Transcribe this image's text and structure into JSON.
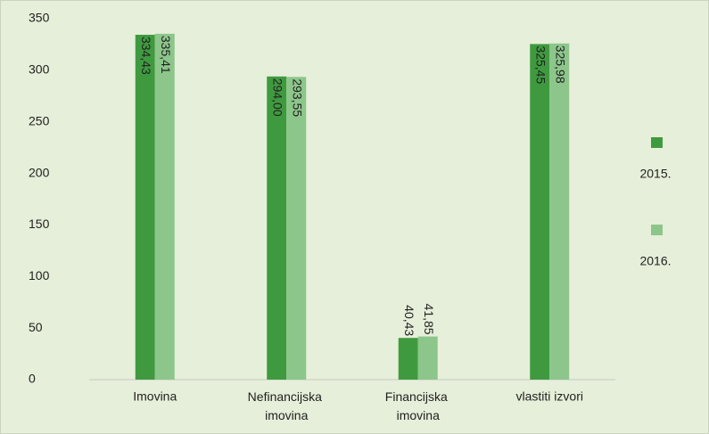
{
  "chart_data": {
    "type": "bar",
    "categories": [
      "Imovina",
      "Nefinancijska imovina",
      "Financijska imovina",
      "vlastiti izvori"
    ],
    "series": [
      {
        "name": "2015.",
        "color": "#3f9a3f",
        "values": [
          334.43,
          294.0,
          40.43,
          325.45
        ],
        "value_labels": [
          "334,43",
          "294,00",
          "40,43",
          "325,45"
        ]
      },
      {
        "name": "2016.",
        "color": "#8dc68b",
        "values": [
          335.41,
          293.55,
          41.85,
          325.98
        ],
        "value_labels": [
          "335,41",
          "293,55",
          "41,85",
          "325,98"
        ]
      }
    ],
    "ylim": [
      0,
      350
    ],
    "yticks": [
      0,
      50,
      100,
      150,
      200,
      250,
      300,
      350
    ],
    "legend": "right"
  }
}
